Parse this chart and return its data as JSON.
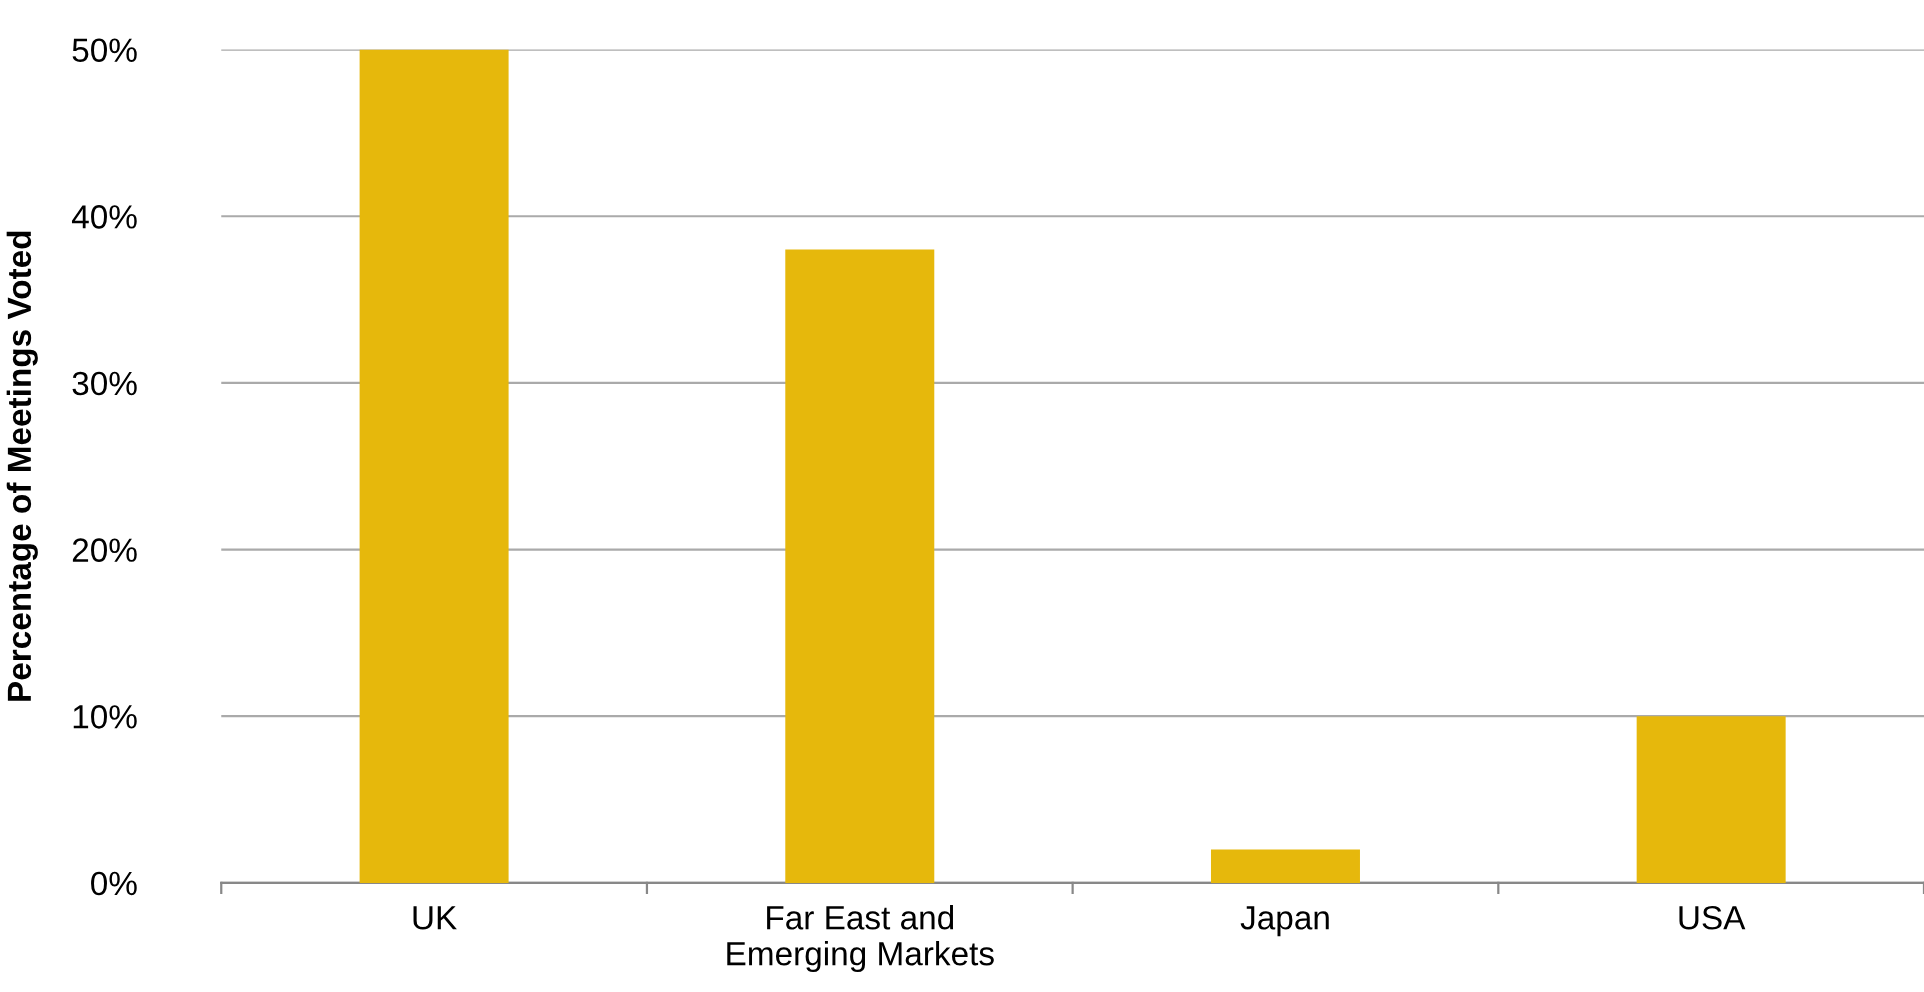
{
  "chart_data": {
    "type": "bar",
    "ylabel": "Percentage of Meetings Voted",
    "categories": [
      "UK",
      "Far East and\nEmerging Markets",
      "Japan",
      "USA"
    ],
    "values": [
      50,
      38,
      2,
      10
    ],
    "color": "#e6b80c",
    "ylim": [
      0,
      50
    ],
    "yticks": [
      {
        "value": 0,
        "label": "0%"
      },
      {
        "value": 10,
        "label": "10%"
      },
      {
        "value": 20,
        "label": "20%"
      },
      {
        "value": 30,
        "label": "30%"
      },
      {
        "value": 40,
        "label": "40%"
      },
      {
        "value": 50,
        "label": "50%"
      }
    ],
    "grid": "y"
  }
}
